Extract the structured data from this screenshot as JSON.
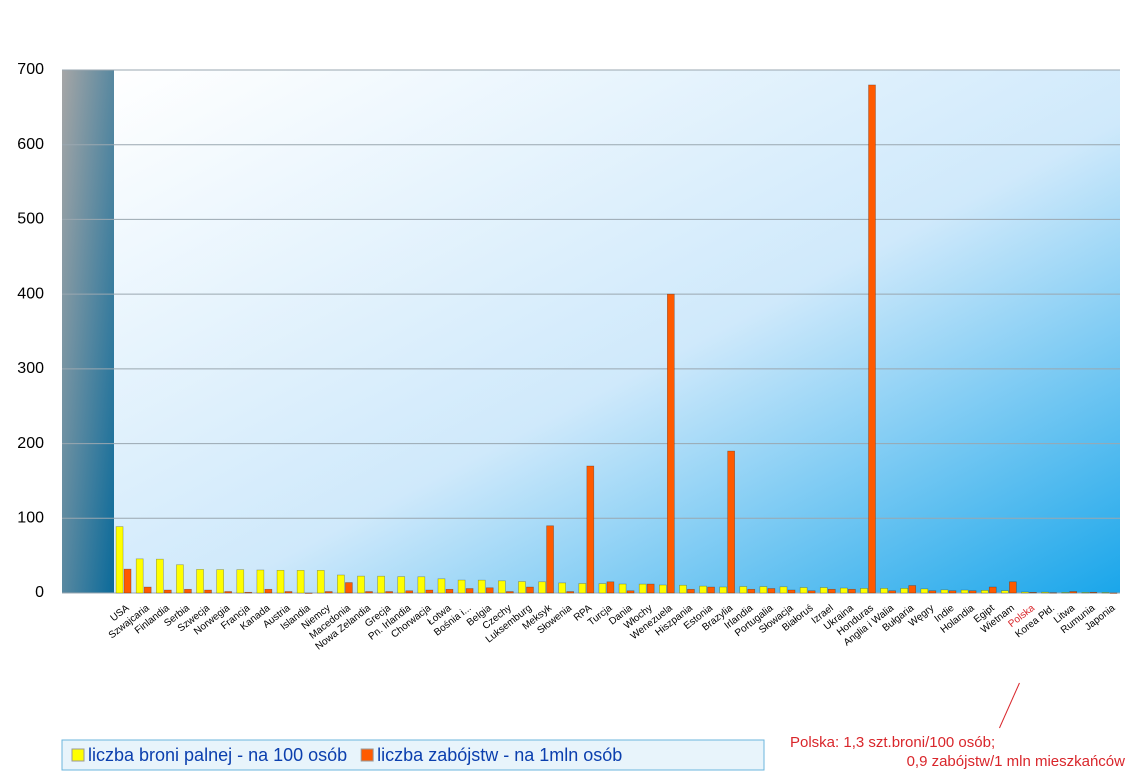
{
  "chart_data": {
    "type": "bar",
    "categories": [
      "USA",
      "Szwajcaria",
      "Finlandia",
      "Serbia",
      "Szwecja",
      "Norwegia",
      "Francja",
      "Kanada",
      "Austria",
      "Islandia",
      "Niemcy",
      "Macedonia",
      "Nowa Zelandia",
      "Grecja",
      "Pn. Irlandia",
      "Chorwacja",
      "Łotwa",
      "Bośnia i...",
      "Belgia",
      "Czechy",
      "Luksemburg",
      "Meksyk",
      "Słowenia",
      "RPA",
      "Turcja",
      "Dania",
      "Włochy",
      "Wenezuela",
      "Hiszpania",
      "Estonia",
      "Brazylia",
      "Irlandia",
      "Portugalia",
      "Słowacja",
      "Białoruś",
      "Izrael",
      "Ukraina",
      "Honduras",
      "Anglia i Walia",
      "Bułgaria",
      "Węgry",
      "Indie",
      "Holandia",
      "Egipt",
      "Wietnam",
      "Polska",
      "Korea Płd.",
      "Litwa",
      "Rumunia",
      "Japonia"
    ],
    "series": [
      {
        "name": "liczba broni palnej  -  na 100 osób",
        "color": "#ffff00",
        "values": [
          88.8,
          45.7,
          45.3,
          37.8,
          31.6,
          31.3,
          31.2,
          30.8,
          30.4,
          30.3,
          30.3,
          24.1,
          22.6,
          22.5,
          21.9,
          21.7,
          19,
          17.3,
          17.2,
          16.3,
          15.3,
          15,
          13.5,
          12.7,
          12.5,
          12,
          11.9,
          10.7,
          10.4,
          9.2,
          8,
          8.6,
          8.5,
          8.3,
          7.3,
          7.3,
          6.6,
          6.2,
          6.2,
          6.2,
          5.5,
          4.2,
          3.9,
          3.5,
          3.1,
          1.3,
          1.1,
          0.7,
          0.7,
          0.6
        ]
      },
      {
        "name": "liczba zabójstw  - na 1mln osób",
        "color": "#ff5a00",
        "values": [
          32,
          8,
          4,
          5,
          4,
          2,
          1,
          5,
          2,
          0,
          2,
          14,
          2,
          2,
          3,
          4,
          5,
          6,
          7,
          2,
          8,
          90,
          2,
          170,
          15,
          3,
          12,
          400,
          5,
          8,
          190,
          5,
          6,
          4,
          3,
          5,
          5,
          680,
          3,
          10,
          3,
          3,
          3,
          8,
          15,
          0.9,
          0.4,
          2,
          1,
          0.1
        ]
      }
    ],
    "ylim": [
      0,
      700
    ],
    "yticks": [
      0,
      100,
      200,
      300,
      400,
      500,
      600,
      700
    ],
    "grid": true,
    "highlight": "Polska",
    "highlight_color": "#d9262b",
    "annotation": [
      "Polska: 1,3 szt.broni/100 osób;",
      "0,9 zabójstw/1 mln mieszkańców"
    ]
  }
}
